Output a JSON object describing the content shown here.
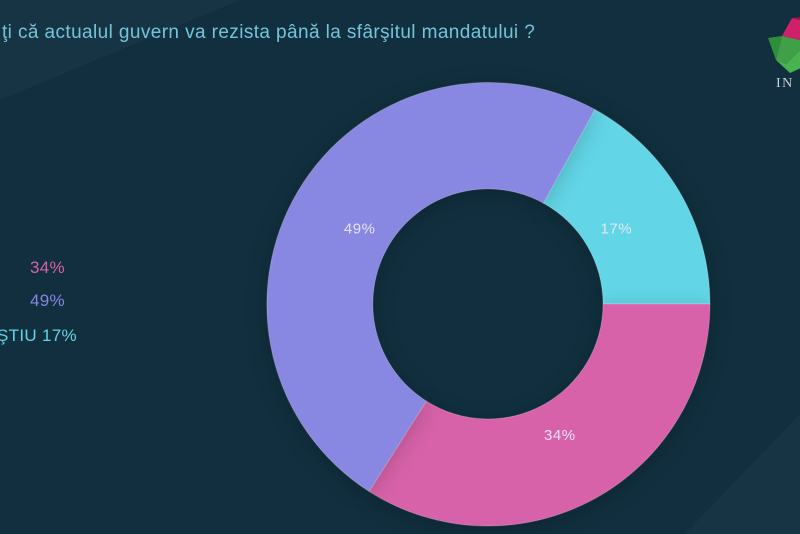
{
  "title": {
    "text": "ţi că actualul guvern va rezista până la sfârşitul mandatului ?"
  },
  "colors": {
    "background": "#112f3e",
    "title": "#74c4d9",
    "label_text": "#ece9f7"
  },
  "legend": {
    "position": "left",
    "items": [
      {
        "text": "34%",
        "color": "#d762a9"
      },
      {
        "text": "49%",
        "color": "#8887e1"
      },
      {
        "text": "ŞTIU 17%",
        "color": "#62d5e6"
      }
    ]
  },
  "logo": {
    "text": "IN",
    "gem_colors": [
      "#d02069",
      "#8f1747",
      "#2e8f3a",
      "#3fa047",
      "#49b34f"
    ]
  },
  "chart_data": {
    "type": "pie",
    "subtype": "donut",
    "title": "ţi că actualul guvern va rezista până la sfârşitul mandatului ?",
    "segments": [
      {
        "label": "17%",
        "value": 17,
        "color": "#62d5e6"
      },
      {
        "label": "34%",
        "value": 34,
        "color": "#d762a9"
      },
      {
        "label": "49%",
        "value": 49,
        "color": "#8887e1"
      }
    ],
    "start_angle_deg": 28.8,
    "direction": "clockwise",
    "legend_position": "left",
    "grid": false
  }
}
